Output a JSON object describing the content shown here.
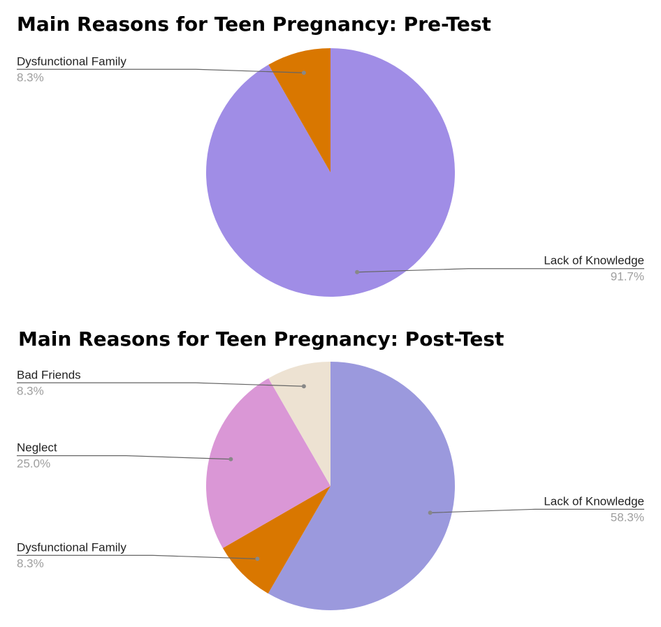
{
  "chart_data": [
    {
      "type": "pie",
      "title": "Main Reasons for Teen Pregnancy: Pre-Test",
      "slices": [
        {
          "label": "Lack of Knowledge",
          "percent_label": "91.7%",
          "value": 91.7,
          "color": "#a08de6"
        },
        {
          "label": "Dysfunctional Family",
          "percent_label": "8.3%",
          "value": 8.3,
          "color": "#d97700"
        }
      ]
    },
    {
      "type": "pie",
      "title": "Main Reasons for Teen Pregnancy: Post-Test",
      "slices": [
        {
          "label": "Lack of Knowledge",
          "percent_label": "58.3%",
          "value": 58.3,
          "color": "#9b99dd"
        },
        {
          "label": "Dysfunctional Family",
          "percent_label": "8.3%",
          "value": 8.3,
          "color": "#d97700"
        },
        {
          "label": "Neglect",
          "percent_label": "25.0%",
          "value": 25.0,
          "color": "#da97d6"
        },
        {
          "label": "Bad Friends",
          "percent_label": "8.3%",
          "value": 8.3,
          "color": "#ede2d2"
        }
      ]
    }
  ]
}
